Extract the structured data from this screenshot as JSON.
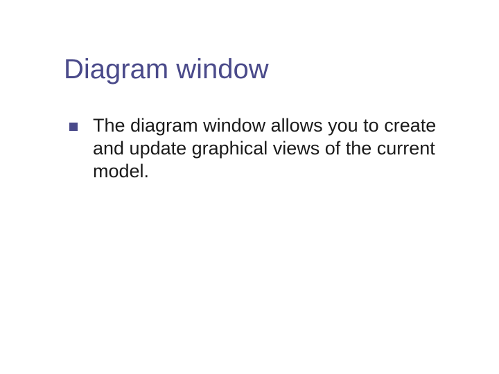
{
  "slide": {
    "title": "Diagram window",
    "title_color": "#4a4a8a",
    "title_fontsize": 40,
    "bullets": [
      {
        "text": "The diagram window allows you to create and update graphical views of the current model.",
        "marker_color": "#4a4a8a",
        "marker_size": 12,
        "text_color": "#1a1a1a",
        "fontsize": 27
      }
    ],
    "background_color": "#ffffff"
  }
}
